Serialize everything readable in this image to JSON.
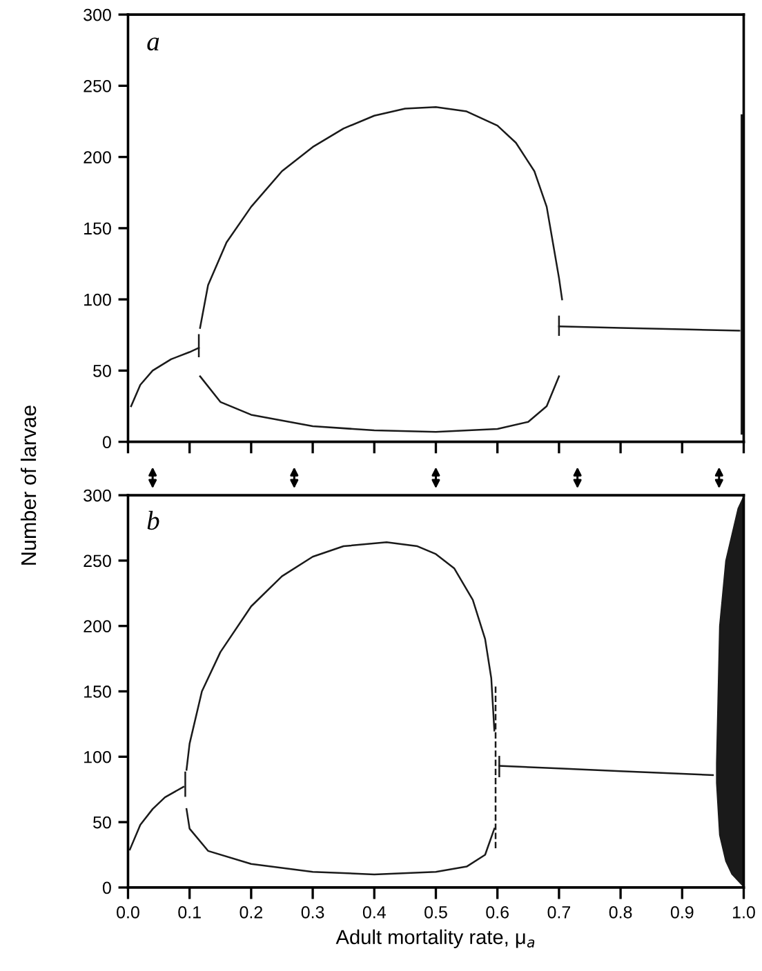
{
  "chart_data": [
    {
      "type": "line",
      "ylabel": "Number of larvae",
      "annotations": [
        "a"
      ],
      "xlim": [
        0.0,
        1.0
      ],
      "ylim": [
        0,
        300
      ],
      "xticks": [
        {
          "value": 0.0,
          "label": null
        },
        {
          "value": 0.1,
          "label": null
        },
        {
          "value": 0.2,
          "label": null
        },
        {
          "value": 0.3,
          "label": null
        },
        {
          "value": 0.4,
          "label": null
        },
        {
          "value": 0.5,
          "label": null
        },
        {
          "value": 0.6,
          "label": null
        },
        {
          "value": 0.7,
          "label": null
        },
        {
          "value": 0.8,
          "label": null
        },
        {
          "value": 0.9,
          "label": null
        },
        {
          "value": 1.0,
          "label": null
        }
      ],
      "yticks": [
        0,
        50,
        100,
        150,
        200,
        250,
        300
      ],
      "tick_labels": "y",
      "grid": false,
      "legend": false,
      "marker": "none",
      "line_style": "solid",
      "series": [
        {
          "color": "#1a1a1a",
          "x": [
            0.005,
            0.02,
            0.04,
            0.07,
            0.1,
            0.115
          ],
          "values": [
            25,
            40,
            50,
            58,
            63,
            66
          ]
        },
        {
          "color": "#1a1a1a",
          "x": [
            0.115,
            0.115
          ],
          "values": [
            60,
            75
          ]
        },
        {
          "color": "#1a1a1a",
          "x": [
            0.117,
            0.13,
            0.16,
            0.2,
            0.25,
            0.3,
            0.35,
            0.4,
            0.45,
            0.5,
            0.55,
            0.6,
            0.63,
            0.66,
            0.68,
            0.69,
            0.7,
            0.705
          ],
          "values": [
            80,
            110,
            140,
            165,
            190,
            207,
            220,
            229,
            234,
            235,
            232,
            222,
            210,
            190,
            165,
            140,
            115,
            100
          ]
        },
        {
          "color": "#1a1a1a",
          "x": [
            0.117,
            0.15,
            0.2,
            0.3,
            0.4,
            0.5,
            0.6,
            0.65,
            0.68,
            0.7
          ],
          "values": [
            46,
            28,
            19,
            11,
            8,
            7,
            9,
            14,
            25,
            46
          ]
        },
        {
          "color": "#1a1a1a",
          "x": [
            0.7,
            0.7
          ],
          "values": [
            75,
            88
          ]
        },
        {
          "color": "#1a1a1a",
          "x": [
            0.7,
            0.8,
            0.9,
            0.993
          ],
          "values": [
            81,
            80,
            79,
            78
          ]
        },
        {
          "color": "#1a1a1a",
          "x": [
            0.995,
            1.0
          ],
          "values": [
            null,
            null
          ],
          "lower": [
            5,
            5
          ],
          "upper": [
            230,
            230
          ]
        }
      ]
    },
    {
      "type": "line",
      "xlabel": "Adult mortality rate, μ$_{a}$",
      "annotations": [
        "b"
      ],
      "xlim": [
        0.0,
        1.0
      ],
      "ylim": [
        0,
        300
      ],
      "xticks": [
        {
          "value": 0.0,
          "label": "0.0"
        },
        {
          "value": 0.1,
          "label": "0.1"
        },
        {
          "value": 0.2,
          "label": "0.2"
        },
        {
          "value": 0.3,
          "label": "0.3"
        },
        {
          "value": 0.4,
          "label": "0.4"
        },
        {
          "value": 0.5,
          "label": "0.5"
        },
        {
          "value": 0.6,
          "label": "0.6"
        },
        {
          "value": 0.7,
          "label": "0.7"
        },
        {
          "value": 0.8,
          "label": "0.8"
        },
        {
          "value": 0.9,
          "label": "0.9"
        },
        {
          "value": 1.0,
          "label": "1.0"
        }
      ],
      "yticks": [
        0,
        50,
        100,
        150,
        200,
        250,
        300
      ],
      "grid": false,
      "legend": false,
      "marker": "none",
      "line_style": "solid",
      "series": [
        {
          "color": "#1a1a1a",
          "x": [
            0.003,
            0.02,
            0.04,
            0.06,
            0.09
          ],
          "values": [
            29,
            48,
            60,
            69,
            77
          ]
        },
        {
          "color": "#1a1a1a",
          "x": [
            0.093,
            0.093
          ],
          "values": [
            70,
            88
          ]
        },
        {
          "color": "#1a1a1a",
          "x": [
            0.095,
            0.1,
            0.12,
            0.15,
            0.2,
            0.25,
            0.3,
            0.35,
            0.42,
            0.47,
            0.5,
            0.53,
            0.56,
            0.58,
            0.59,
            0.595
          ],
          "values": [
            90,
            110,
            150,
            180,
            215,
            238,
            253,
            261,
            264,
            261,
            255,
            244,
            220,
            190,
            160,
            120
          ]
        },
        {
          "color": "#1a1a1a",
          "x": [
            0.095,
            0.1,
            0.13,
            0.2,
            0.3,
            0.4,
            0.5,
            0.55,
            0.58,
            0.595
          ],
          "values": [
            60,
            45,
            28,
            18,
            12,
            10,
            12,
            16,
            25,
            45
          ]
        },
        {
          "color": "#1a1a1a",
          "x": [
            0.597,
            0.597
          ],
          "values": [
            30,
            155
          ],
          "line_style": "dashed"
        },
        {
          "color": "#1a1a1a",
          "x": [
            0.603,
            0.603
          ],
          "values": [
            85,
            100
          ]
        },
        {
          "color": "#1a1a1a",
          "x": [
            0.603,
            0.7,
            0.8,
            0.9,
            0.95
          ],
          "values": [
            93,
            91,
            89,
            87,
            86
          ]
        },
        {
          "color": "#1a1a1a",
          "x": [
            0.955,
            0.96,
            0.97,
            0.98,
            0.99,
            1.0
          ],
          "values": [
            null,
            null,
            null,
            null,
            null,
            null
          ],
          "lower": [
            80,
            40,
            20,
            10,
            5,
            0
          ],
          "upper": [
            95,
            200,
            250,
            270,
            290,
            300
          ]
        }
      ]
    }
  ]
}
